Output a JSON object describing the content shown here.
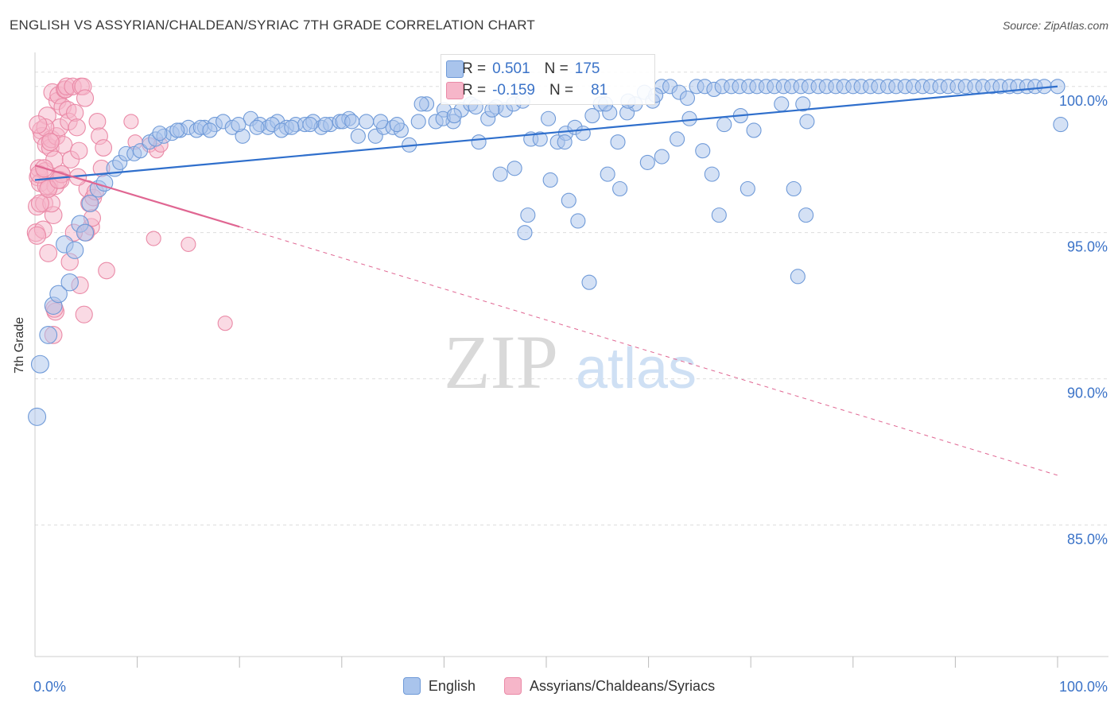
{
  "title": "ENGLISH VS ASSYRIAN/CHALDEAN/SYRIAC 7TH GRADE CORRELATION CHART",
  "source": "Source: ZipAtlas.com",
  "watermark": {
    "zip": "ZIP",
    "atlas": "atlas"
  },
  "colors": {
    "english": "#a9c4ec",
    "english_stroke": "#6f9ad8",
    "english_line": "#2f6fcc",
    "assyrian": "#f6b6c9",
    "assyrian_stroke": "#ea8aa7",
    "assyrian_line": "#e06692",
    "tick_label": "#3b73c8",
    "grid": "#dddddd"
  },
  "stats": {
    "english": {
      "r_label": "R =",
      "r": "0.501",
      "n_label": "N =",
      "n": "175"
    },
    "assyrian": {
      "r_label": "R =",
      "r": "-0.159",
      "n_label": "N =",
      "n": "81"
    }
  },
  "legend": {
    "english": "English",
    "assyrian": "Assyrians/Chaldeans/Syriacs"
  },
  "chart_data": {
    "type": "scatter",
    "title": "ENGLISH VS ASSYRIAN/CHALDEAN/SYRIAC 7TH GRADE CORRELATION CHART",
    "xlabel": "",
    "ylabel": "7th Grade",
    "xlim": [
      0,
      100
    ],
    "ylim": [
      80.5,
      101
    ],
    "x_tick_labels": [
      "0.0%",
      "100.0%"
    ],
    "y_ticks": [
      85,
      90,
      95,
      100
    ],
    "y_tick_labels": [
      "85.0%",
      "90.0%",
      "95.0%",
      "100.0%"
    ],
    "grid": true,
    "legend_position": "bottom-center",
    "series": [
      {
        "name": "English",
        "trend": {
          "x": [
            0,
            100
          ],
          "y": [
            96.8,
            100.0
          ],
          "style": "solid"
        },
        "points": [
          [
            0.2,
            88.7
          ],
          [
            0.5,
            90.5
          ],
          [
            1.3,
            91.5
          ],
          [
            1.8,
            92.5
          ],
          [
            2.3,
            92.9
          ],
          [
            3.4,
            93.3
          ],
          [
            2.9,
            94.6
          ],
          [
            3.9,
            94.4
          ],
          [
            4.4,
            95.3
          ],
          [
            4.9,
            95.0
          ],
          [
            5.4,
            96.0
          ],
          [
            6.2,
            96.5
          ],
          [
            6.8,
            96.7
          ],
          [
            7.8,
            97.2
          ],
          [
            8.3,
            97.4
          ],
          [
            8.9,
            97.7
          ],
          [
            9.7,
            97.7
          ],
          [
            10.3,
            97.8
          ],
          [
            11.2,
            98.1
          ],
          [
            11.8,
            98.2
          ],
          [
            12.6,
            98.3
          ],
          [
            13.4,
            98.4
          ],
          [
            14.2,
            98.5
          ],
          [
            15.0,
            98.6
          ],
          [
            15.8,
            98.5
          ],
          [
            16.6,
            98.6
          ],
          [
            17.6,
            98.7
          ],
          [
            18.4,
            98.8
          ],
          [
            19.3,
            98.6
          ],
          [
            20.3,
            98.3
          ],
          [
            21.1,
            98.9
          ],
          [
            22.0,
            98.7
          ],
          [
            22.8,
            98.6
          ],
          [
            23.7,
            98.8
          ],
          [
            24.6,
            98.6
          ],
          [
            25.5,
            98.7
          ],
          [
            26.4,
            98.7
          ],
          [
            27.2,
            98.8
          ],
          [
            28.0,
            98.6
          ],
          [
            28.9,
            98.7
          ],
          [
            29.8,
            98.8
          ],
          [
            30.7,
            98.9
          ],
          [
            31.6,
            98.3
          ],
          [
            32.4,
            98.8
          ],
          [
            33.3,
            98.3
          ],
          [
            34.1,
            98.6
          ],
          [
            35.0,
            98.6
          ],
          [
            35.8,
            98.5
          ],
          [
            36.6,
            98.0
          ],
          [
            37.5,
            98.8
          ],
          [
            38.3,
            99.4
          ],
          [
            39.2,
            98.8
          ],
          [
            40.0,
            99.2
          ],
          [
            40.9,
            98.8
          ],
          [
            41.7,
            99.2
          ],
          [
            42.6,
            99.4
          ],
          [
            43.4,
            98.1
          ],
          [
            44.3,
            98.9
          ],
          [
            45.1,
            99.3
          ],
          [
            46.0,
            99.2
          ],
          [
            46.8,
            99.4
          ],
          [
            47.7,
            99.5
          ],
          [
            48.5,
            98.2
          ],
          [
            49.4,
            98.2
          ],
          [
            50.2,
            98.9
          ],
          [
            51.1,
            98.1
          ],
          [
            51.9,
            98.4
          ],
          [
            52.8,
            98.6
          ],
          [
            53.6,
            98.4
          ],
          [
            54.5,
            99.0
          ],
          [
            55.3,
            99.4
          ],
          [
            56.2,
            99.1
          ],
          [
            57.0,
            98.1
          ],
          [
            57.9,
            99.1
          ],
          [
            58.7,
            99.4
          ],
          [
            59.6,
            99.8
          ],
          [
            60.4,
            99.5
          ],
          [
            61.3,
            100.0
          ],
          [
            62.1,
            100.0
          ],
          [
            63.0,
            99.8
          ],
          [
            63.8,
            99.6
          ],
          [
            64.7,
            100.0
          ],
          [
            65.5,
            100.0
          ],
          [
            66.4,
            99.9
          ],
          [
            67.2,
            100.0
          ],
          [
            68.1,
            100.0
          ],
          [
            68.9,
            100.0
          ],
          [
            69.8,
            100.0
          ],
          [
            70.6,
            100.0
          ],
          [
            71.5,
            100.0
          ],
          [
            72.3,
            100.0
          ],
          [
            73.2,
            100.0
          ],
          [
            74.0,
            100.0
          ],
          [
            74.9,
            100.0
          ],
          [
            75.7,
            100.0
          ],
          [
            76.6,
            100.0
          ],
          [
            77.4,
            100.0
          ],
          [
            78.3,
            100.0
          ],
          [
            79.1,
            100.0
          ],
          [
            80.0,
            100.0
          ],
          [
            80.8,
            100.0
          ],
          [
            81.7,
            100.0
          ],
          [
            82.5,
            100.0
          ],
          [
            83.4,
            100.0
          ],
          [
            84.2,
            100.0
          ],
          [
            85.1,
            100.0
          ],
          [
            85.9,
            100.0
          ],
          [
            86.8,
            100.0
          ],
          [
            87.6,
            100.0
          ],
          [
            88.5,
            100.0
          ],
          [
            89.3,
            100.0
          ],
          [
            90.2,
            100.0
          ],
          [
            91.0,
            100.0
          ],
          [
            91.9,
            100.0
          ],
          [
            92.7,
            100.0
          ],
          [
            93.6,
            100.0
          ],
          [
            94.4,
            100.0
          ],
          [
            95.3,
            100.0
          ],
          [
            96.1,
            100.0
          ],
          [
            97.0,
            100.0
          ],
          [
            97.8,
            100.0
          ],
          [
            98.7,
            100.0
          ],
          [
            100.0,
            100.0
          ],
          [
            100.3,
            98.7
          ],
          [
            45.5,
            97.0
          ],
          [
            46.9,
            97.2
          ],
          [
            47.9,
            95.0
          ],
          [
            48.2,
            95.6
          ],
          [
            50.4,
            96.8
          ],
          [
            51.8,
            98.1
          ],
          [
            52.2,
            96.1
          ],
          [
            53.1,
            95.4
          ],
          [
            54.2,
            93.3
          ],
          [
            56.0,
            97.0
          ],
          [
            57.2,
            96.5
          ],
          [
            59.9,
            97.4
          ],
          [
            61.3,
            97.6
          ],
          [
            62.8,
            98.2
          ],
          [
            64.0,
            98.9
          ],
          [
            65.3,
            97.8
          ],
          [
            66.2,
            97.0
          ],
          [
            66.9,
            95.6
          ],
          [
            67.4,
            98.7
          ],
          [
            69.0,
            99.0
          ],
          [
            69.7,
            96.5
          ],
          [
            70.3,
            98.5
          ],
          [
            73.0,
            99.4
          ],
          [
            74.2,
            96.5
          ],
          [
            75.1,
            99.4
          ],
          [
            75.5,
            98.8
          ],
          [
            75.4,
            95.6
          ],
          [
            74.6,
            93.5
          ],
          [
            37.8,
            99.4
          ],
          [
            39.9,
            98.9
          ],
          [
            41.0,
            99.0
          ],
          [
            43.1,
            99.3
          ],
          [
            44.7,
            99.2
          ],
          [
            55.8,
            99.4
          ],
          [
            58.0,
            99.5
          ],
          [
            60.7,
            99.7
          ],
          [
            28.4,
            98.7
          ],
          [
            30.1,
            98.8
          ],
          [
            33.8,
            98.8
          ],
          [
            35.4,
            98.7
          ],
          [
            12.2,
            98.4
          ],
          [
            13.9,
            98.5
          ],
          [
            16.2,
            98.6
          ],
          [
            17.1,
            98.5
          ],
          [
            19.9,
            98.7
          ],
          [
            21.7,
            98.6
          ],
          [
            23.2,
            98.7
          ],
          [
            24.1,
            98.5
          ],
          [
            25.1,
            98.6
          ],
          [
            26.9,
            98.7
          ],
          [
            31.0,
            98.8
          ]
        ]
      },
      {
        "name": "Assyrians/Chaldeans/Syriacs",
        "trend": {
          "x": [
            0,
            20,
            100
          ],
          "y": [
            97.3,
            95.2,
            86.7
          ],
          "style": "solid-then-dashed",
          "solid_until_x": 20
        },
        "points": [
          [
            0.1,
            95.0
          ],
          [
            0.2,
            95.9
          ],
          [
            0.3,
            96.9
          ],
          [
            0.4,
            97.2
          ],
          [
            0.5,
            96.7
          ],
          [
            0.6,
            98.5
          ],
          [
            0.7,
            98.3
          ],
          [
            0.8,
            95.1
          ],
          [
            0.9,
            96.0
          ],
          [
            1.0,
            97.1
          ],
          [
            1.1,
            98.0
          ],
          [
            1.2,
            99.0
          ],
          [
            1.3,
            94.3
          ],
          [
            1.4,
            96.6
          ],
          [
            1.5,
            97.9
          ],
          [
            1.6,
            98.2
          ],
          [
            1.7,
            99.8
          ],
          [
            1.8,
            95.6
          ],
          [
            1.9,
            97.5
          ],
          [
            2.0,
            96.6
          ],
          [
            2.1,
            98.3
          ],
          [
            2.2,
            99.5
          ],
          [
            2.3,
            99.7
          ],
          [
            2.4,
            98.6
          ],
          [
            2.5,
            96.8
          ],
          [
            2.6,
            97.0
          ],
          [
            2.7,
            99.3
          ],
          [
            2.8,
            98.0
          ],
          [
            2.9,
            99.9
          ],
          [
            3.0,
            99.9
          ],
          [
            3.1,
            100.0
          ],
          [
            3.2,
            99.2
          ],
          [
            3.3,
            98.8
          ],
          [
            3.5,
            97.5
          ],
          [
            3.7,
            100.0
          ],
          [
            3.9,
            99.1
          ],
          [
            4.1,
            98.6
          ],
          [
            4.3,
            97.8
          ],
          [
            4.5,
            100.0
          ],
          [
            4.7,
            100.0
          ],
          [
            4.9,
            99.6
          ],
          [
            5.1,
            96.5
          ],
          [
            5.3,
            96.0
          ],
          [
            5.5,
            95.2
          ],
          [
            5.7,
            96.2
          ],
          [
            5.9,
            96.4
          ],
          [
            6.1,
            98.8
          ],
          [
            6.3,
            98.3
          ],
          [
            6.5,
            97.2
          ],
          [
            6.7,
            97.9
          ],
          [
            7.0,
            93.7
          ],
          [
            9.4,
            98.8
          ],
          [
            9.8,
            98.1
          ],
          [
            11.2,
            98.0
          ],
          [
            11.6,
            94.8
          ],
          [
            11.9,
            97.8
          ],
          [
            12.3,
            98.0
          ],
          [
            15.0,
            94.6
          ],
          [
            18.6,
            91.9
          ],
          [
            1.0,
            98.6
          ],
          [
            1.5,
            98.1
          ],
          [
            1.6,
            96.0
          ],
          [
            1.8,
            91.5
          ],
          [
            2.0,
            92.3
          ],
          [
            0.3,
            98.7
          ],
          [
            0.5,
            96.0
          ],
          [
            1.1,
            96.6
          ],
          [
            1.3,
            96.5
          ],
          [
            2.6,
            97.0
          ],
          [
            3.4,
            94.0
          ],
          [
            4.4,
            93.2
          ],
          [
            4.8,
            92.2
          ],
          [
            5.0,
            95.0
          ],
          [
            5.6,
            95.5
          ],
          [
            0.4,
            97.0
          ],
          [
            0.9,
            97.2
          ],
          [
            1.9,
            92.4
          ],
          [
            2.3,
            96.8
          ],
          [
            3.8,
            95.0
          ],
          [
            4.2,
            96.9
          ],
          [
            0.2,
            94.9
          ]
        ]
      }
    ]
  }
}
